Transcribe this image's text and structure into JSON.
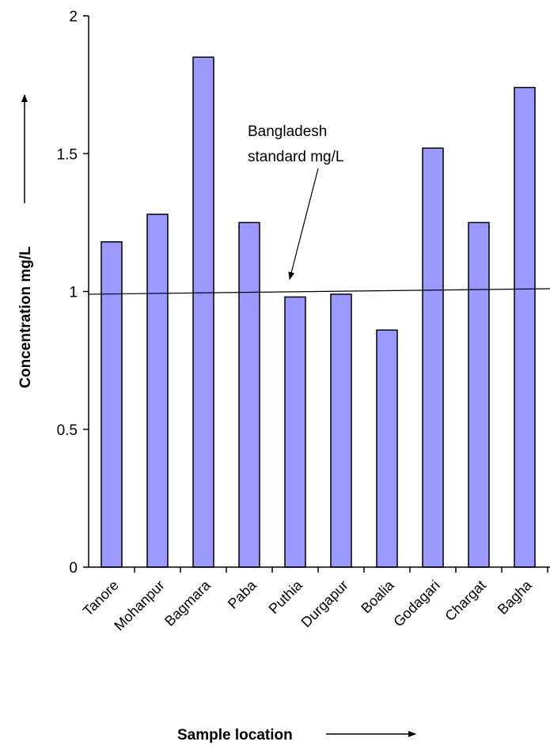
{
  "chart_data": {
    "type": "bar",
    "categories": [
      "Tanore",
      "Mohanpur",
      "Bagmara",
      "Paba",
      "Puthia",
      "Durgapur",
      "Boalia",
      "Godagari",
      "Chargat",
      "Bagha"
    ],
    "values": [
      1.18,
      1.28,
      1.85,
      1.25,
      0.98,
      0.99,
      0.86,
      1.52,
      1.25,
      1.74
    ],
    "xlabel": "Sample location",
    "ylabel": "Concentration mg/L",
    "ylim": [
      0,
      2
    ],
    "yticks": [
      "0",
      "0.5",
      "1",
      "1.5",
      "2"
    ],
    "ytick_values": [
      0,
      0.5,
      1,
      1.5,
      2
    ],
    "bar_color": "#9999ff",
    "reference_line": {
      "label_line1": "Bangladesh",
      "label_line2": "standard mg/L",
      "y_start": 0.99,
      "y_end": 1.01
    },
    "grid": false,
    "legend": "none"
  }
}
